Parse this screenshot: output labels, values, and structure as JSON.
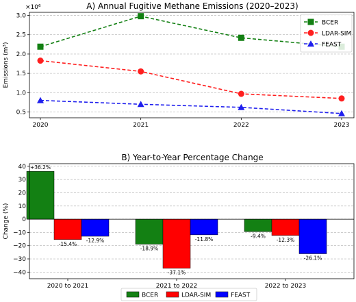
{
  "chart_data": [
    {
      "type": "line",
      "title": "A) Annual Fugitive Methane Emissions (2020–2023)",
      "ylabel": "Emissions (m³)",
      "xlabel": "",
      "multiplier_label": "×10⁶",
      "x": [
        "2020",
        "2021",
        "2022",
        "2023"
      ],
      "ylim": [
        0.35,
        3.08
      ],
      "yticks": [
        0.5,
        1.0,
        1.5,
        2.0,
        2.5,
        3.0
      ],
      "ytick_labels": [
        "0.5",
        "1.0",
        "1.5",
        "2.0",
        "2.5",
        "3.0"
      ],
      "grid": "y-dashed",
      "legend_position": "top-right",
      "series": [
        {
          "name": "BCER",
          "color": "#138013",
          "marker": "square",
          "values": [
            2.19,
            2.98,
            2.42,
            2.19
          ]
        },
        {
          "name": "LDAR-SIM",
          "color": "#ff1f1f",
          "marker": "circle",
          "values": [
            1.83,
            1.55,
            0.97,
            0.85
          ]
        },
        {
          "name": "FEAST",
          "color": "#1f1fee",
          "marker": "triangle",
          "values": [
            0.8,
            0.7,
            0.62,
            0.46
          ]
        }
      ]
    },
    {
      "type": "bar",
      "title": "B) Year-to-Year Percentage Change",
      "ylabel": "Change (%)",
      "xlabel": "",
      "categories": [
        "2020 to 2021",
        "2021 to 2022",
        "2022 to 2023"
      ],
      "ylim": [
        -45,
        42
      ],
      "yticks": [
        -40,
        -30,
        -20,
        -10,
        0,
        10,
        20,
        30,
        40
      ],
      "ytick_labels": [
        "−40",
        "−30",
        "−20",
        "−10",
        "0",
        "10",
        "20",
        "30",
        "40"
      ],
      "grid": "y-dashed",
      "legend_position": "bottom-center",
      "series": [
        {
          "name": "BCER",
          "color": "#138013",
          "values": [
            36.2,
            -18.9,
            -9.4
          ],
          "labels": [
            "+36.2%",
            "-18.9%",
            "-9.4%"
          ]
        },
        {
          "name": "LDAR-SIM",
          "color": "#ff0000",
          "values": [
            -15.4,
            -37.1,
            -12.3
          ],
          "labels": [
            "-15.4%",
            "-37.1%",
            "-12.3%"
          ]
        },
        {
          "name": "FEAST",
          "color": "#0000ff",
          "values": [
            -12.9,
            -11.8,
            -26.1
          ],
          "labels": [
            "-12.9%",
            "-11.8%",
            "-26.1%"
          ]
        }
      ]
    }
  ]
}
